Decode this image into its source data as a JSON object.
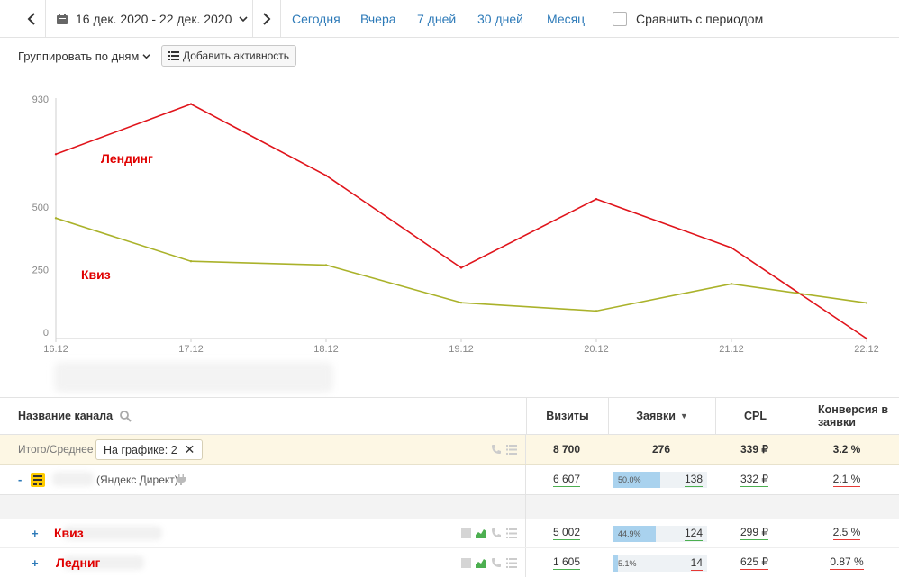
{
  "toolbar": {
    "date_range": "16 дек. 2020 - 22 дек. 2020",
    "quick": [
      "Сегодня",
      "Вчера",
      "7 дней",
      "30 дней",
      "Месяц"
    ],
    "compare_label": "Сравнить с периодом",
    "compare_checked": false,
    "group_by": "Группировать по дням",
    "add_activity": "Добавить активность"
  },
  "chart_data": {
    "type": "line",
    "x": [
      "16.12",
      "17.12",
      "18.12",
      "19.12",
      "20.12",
      "21.12",
      "22.12"
    ],
    "y_ticks": [
      "0",
      "250",
      "500",
      "930"
    ],
    "series": [
      {
        "name": "Лендинг",
        "color": "#e0141b",
        "values": [
          735,
          935,
          650,
          282,
          556,
          362,
          0
        ]
      },
      {
        "name": "Квиз",
        "color": "#aab22a",
        "values": [
          480,
          308,
          293,
          143,
          110,
          218,
          142
        ]
      }
    ],
    "grid": false
  },
  "table": {
    "headers": {
      "name": "Название канала",
      "visits": "Визиты",
      "leads": "Заявки",
      "leads_sort": "▼",
      "cpl": "CPL",
      "conv": "Конверсия в заявки"
    },
    "total": {
      "label": "Итого/Среднее",
      "chip": "На графике: 2",
      "chip_close": "✕",
      "visits": "8 700",
      "leads": "276",
      "cpl": "339 ₽",
      "conv": "3.2 %"
    },
    "direct": {
      "toggle": "-",
      "name": "(Яндекс Директ)",
      "visits": "6 607",
      "leads_pct": "50.0%",
      "leads_fraction": 0.5,
      "leads": "138",
      "cpl": "332 ₽",
      "conv": "2.1 %"
    },
    "rows": [
      {
        "toggle": "+",
        "label": "Квиз",
        "visits": "5 002",
        "leads_pct": "44.9%",
        "leads_fraction": 0.449,
        "leads": "124",
        "cpl": "299 ₽",
        "conv": "2.5 %"
      },
      {
        "toggle": "+",
        "label": "Ледниг",
        "visits": "1 605",
        "leads_pct": "5.1%",
        "leads_fraction": 0.051,
        "leads": "14",
        "cpl": "625 ₽",
        "conv": "0.87 %"
      }
    ]
  },
  "colors": {
    "accent": "#2d7ab8",
    "landing": "#e0141b",
    "quiz": "#aab22a",
    "bar": "#a9d2ee",
    "total_bg": "#fdf7e4"
  }
}
